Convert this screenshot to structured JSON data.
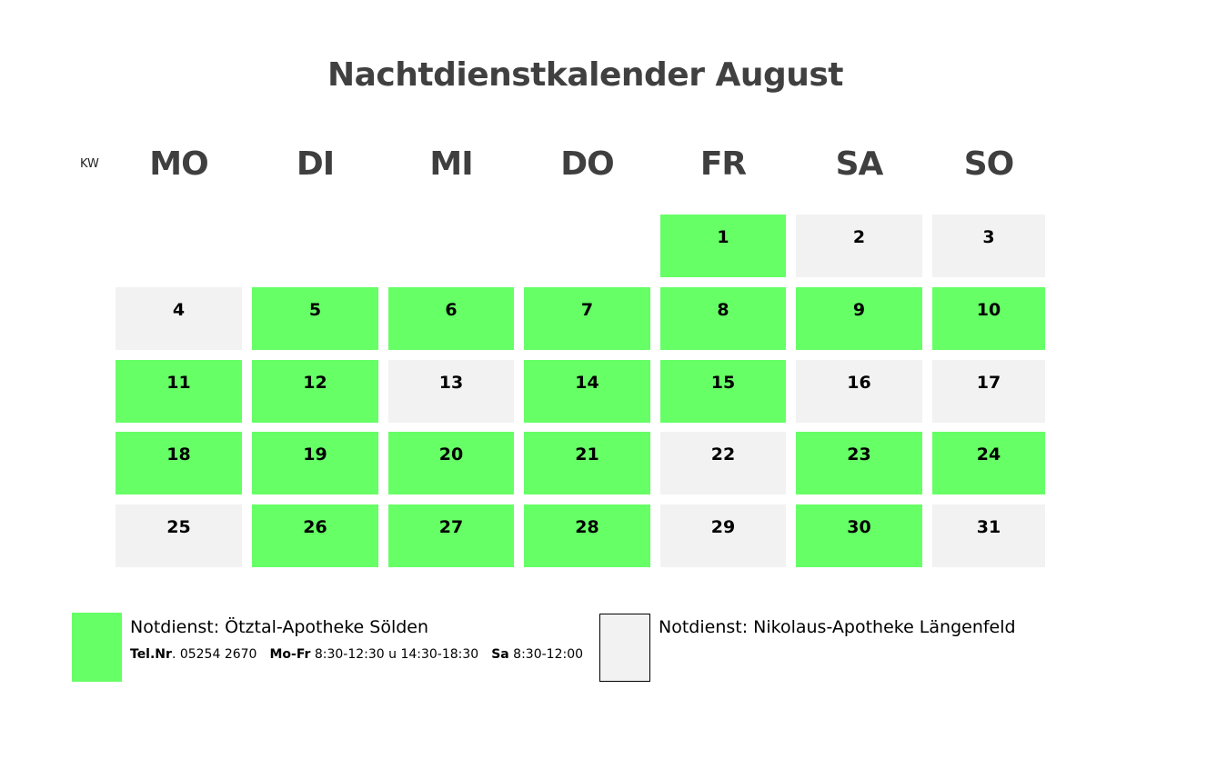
{
  "title": "Nachtdienstkalender August",
  "kw_label": "KW",
  "weekdays": [
    "MO",
    "DI",
    "MI",
    "DO",
    "FR",
    "SA",
    "SO"
  ],
  "colors": {
    "green": "#66ff66",
    "grey": "#f2f2f2",
    "heading": "#404040"
  },
  "weeks": [
    [
      null,
      null,
      null,
      null,
      {
        "day": "1",
        "pharmacy": "green"
      },
      {
        "day": "2",
        "pharmacy": "grey"
      },
      {
        "day": "3",
        "pharmacy": "grey"
      }
    ],
    [
      {
        "day": "4",
        "pharmacy": "grey"
      },
      {
        "day": "5",
        "pharmacy": "green"
      },
      {
        "day": "6",
        "pharmacy": "green"
      },
      {
        "day": "7",
        "pharmacy": "green"
      },
      {
        "day": "8",
        "pharmacy": "green"
      },
      {
        "day": "9",
        "pharmacy": "green"
      },
      {
        "day": "10",
        "pharmacy": "green"
      }
    ],
    [
      {
        "day": "11",
        "pharmacy": "green"
      },
      {
        "day": "12",
        "pharmacy": "green"
      },
      {
        "day": "13",
        "pharmacy": "grey"
      },
      {
        "day": "14",
        "pharmacy": "green"
      },
      {
        "day": "15",
        "pharmacy": "green"
      },
      {
        "day": "16",
        "pharmacy": "grey"
      },
      {
        "day": "17",
        "pharmacy": "grey"
      }
    ],
    [
      {
        "day": "18",
        "pharmacy": "green"
      },
      {
        "day": "19",
        "pharmacy": "green"
      },
      {
        "day": "20",
        "pharmacy": "green"
      },
      {
        "day": "21",
        "pharmacy": "green"
      },
      {
        "day": "22",
        "pharmacy": "grey"
      },
      {
        "day": "23",
        "pharmacy": "green"
      },
      {
        "day": "24",
        "pharmacy": "green"
      }
    ],
    [
      {
        "day": "25",
        "pharmacy": "grey"
      },
      {
        "day": "26",
        "pharmacy": "green"
      },
      {
        "day": "27",
        "pharmacy": "green"
      },
      {
        "day": "28",
        "pharmacy": "green"
      },
      {
        "day": "29",
        "pharmacy": "grey"
      },
      {
        "day": "30",
        "pharmacy": "green"
      },
      {
        "day": "31",
        "pharmacy": "grey"
      }
    ]
  ],
  "legend": {
    "green": {
      "title": "Notdienst: Ötztal-Apotheke Sölden",
      "tel_label": "Tel.Nr",
      "tel_value": ". 05254 2670",
      "weekday_label": "Mo-Fr",
      "weekday_hours": " 8:30-12:30 u 14:30-18:30",
      "saturday_label": "Sa",
      "saturday_hours": " 8:30-12:00"
    },
    "grey": {
      "title": "Notdienst: Nikolaus-Apotheke Längenfeld"
    }
  }
}
